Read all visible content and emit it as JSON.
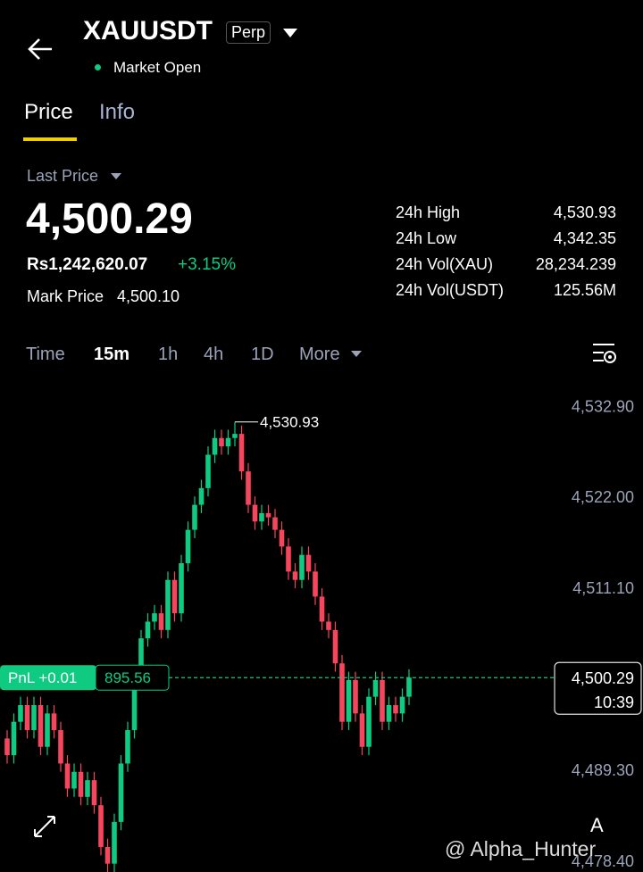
{
  "header": {
    "title": "XAUUSDT",
    "badge": "Perp",
    "status": "Market Open"
  },
  "tabs": [
    "Price",
    "Info"
  ],
  "price": {
    "last_price_label": "Last Price",
    "last_price": "4,500.29",
    "fiat": "Rs1,242,620.07",
    "change": "+3.15%",
    "mark_label": "Mark Price",
    "mark_value": "4,500.10"
  },
  "stats": [
    {
      "label": "24h High",
      "value": "4,530.93"
    },
    {
      "label": "24h Low",
      "value": "4,342.35"
    },
    {
      "label": "24h Vol(XAU)",
      "value": "28,234.239"
    },
    {
      "label": "24h Vol(USDT)",
      "value": "125.56M"
    }
  ],
  "intervals": [
    "Time",
    "15m",
    "1h",
    "4h",
    "1D",
    "More"
  ],
  "chart_data": {
    "type": "candlestick",
    "up_color": "#0ecb81",
    "down_color": "#f6465d",
    "ylim": [
      4477.0,
      4535.5
    ],
    "yticks": [
      {
        "value": 4532.9,
        "label": "4,532.90"
      },
      {
        "value": 4522.0,
        "label": "4,522.00"
      },
      {
        "value": 4511.1,
        "label": "4,511.10"
      },
      {
        "value": 4489.3,
        "label": "4,489.30"
      },
      {
        "value": 4478.4,
        "label": "4,478.40"
      }
    ],
    "opens": [
      4493,
      4491,
      4495,
      4497,
      4494,
      4497,
      4492,
      4496,
      4494,
      4490,
      4487,
      4489,
      4486,
      4488,
      4485,
      4480,
      4478,
      4483,
      4490,
      4494,
      4500,
      4505,
      4507,
      4508,
      4506,
      4512,
      4508,
      4514,
      4518,
      4521,
      4523,
      4527,
      4529,
      4528,
      4529,
      4529.5,
      4525,
      4521,
      4519,
      4520,
      4519.5,
      4518,
      4516,
      4513,
      4512,
      4515,
      4513,
      4510,
      4507,
      4506,
      4502,
      4495,
      4500,
      4496,
      4492,
      4498,
      4500,
      4495,
      4497,
      4496,
      4498
    ],
    "highs": [
      4494,
      4496,
      4498,
      4498,
      4498,
      4498,
      4497,
      4497,
      4495,
      4491,
      4490,
      4490,
      4489,
      4489,
      4486,
      4481,
      4484,
      4491,
      4495,
      4501,
      4506,
      4508,
      4509,
      4509,
      4513,
      4513,
      4515,
      4519,
      4522,
      4524,
      4528,
      4530,
      4530,
      4530,
      4530.93,
      4530.5,
      4526,
      4522,
      4521,
      4521,
      4520.5,
      4519,
      4517,
      4514,
      4516,
      4516,
      4514,
      4511,
      4508,
      4507,
      4503,
      4501,
      4501,
      4497,
      4499,
      4501,
      4501,
      4498,
      4498,
      4499,
      4501.29
    ],
    "lows": [
      4490,
      4490,
      4494,
      4493,
      4493,
      4491,
      4491,
      4493,
      4489,
      4486,
      4486,
      4485,
      4485,
      4484,
      4479,
      4477,
      4477,
      4482,
      4489,
      4493,
      4499,
      4504,
      4506,
      4505,
      4505,
      4507,
      4507,
      4513,
      4517,
      4520,
      4522,
      4526,
      4527,
      4527,
      4528,
      4524,
      4520,
      4518,
      4518,
      4518.5,
      4517,
      4515,
      4512,
      4511,
      4511,
      4512,
      4509,
      4506,
      4505,
      4501,
      4494,
      4494,
      4495,
      4491,
      4491,
      4497,
      4494,
      4494,
      4495,
      4495,
      4497
    ],
    "closes": [
      4491,
      4495,
      4497,
      4494,
      4497,
      4492,
      4496,
      4494,
      4490,
      4487,
      4489,
      4486,
      4488,
      4485,
      4480,
      4478,
      4483,
      4490,
      4494,
      4500,
      4505,
      4507,
      4508,
      4506,
      4512,
      4508,
      4514,
      4518,
      4521,
      4523,
      4527,
      4529,
      4528,
      4529,
      4529.5,
      4525,
      4521,
      4519,
      4520,
      4519.5,
      4518,
      4516,
      4513,
      4512,
      4515,
      4513,
      4510,
      4507,
      4506,
      4502,
      4495,
      4500,
      4496,
      4492,
      4498,
      4500,
      4495,
      4497,
      4496,
      4498,
      4500.29
    ],
    "high_marker": {
      "value": 4530.93,
      "label": "4,530.93"
    },
    "current_price": {
      "value": 4500.29,
      "label": "4,500.29"
    },
    "countdown": "10:39",
    "pnl_label": "PnL +0.01",
    "position_price": "895.56"
  },
  "watermark": "@ Alpha_Hunter",
  "corner_letter": "A"
}
